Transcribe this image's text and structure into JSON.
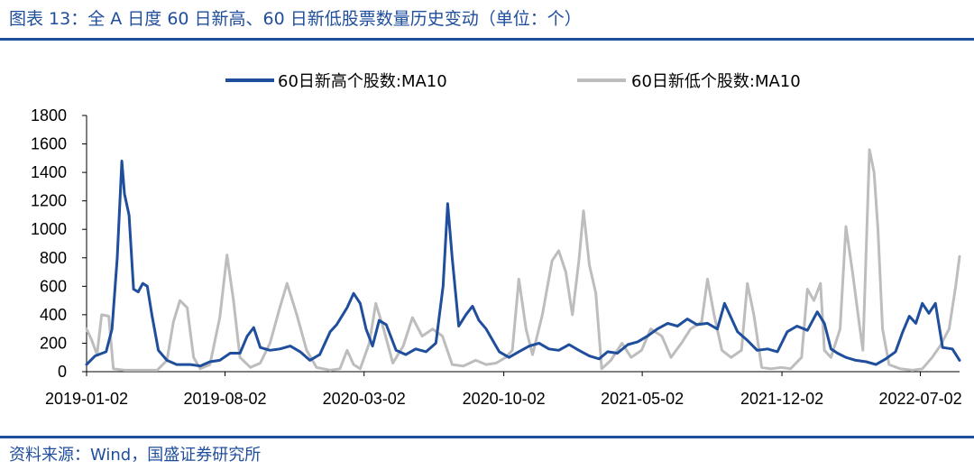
{
  "title": "图表 13：全 A 日度 60 日新高、60 日新低股票数量历史变动（单位：个）",
  "source": "资料来源：Wind，国盛证券研究所",
  "chart_data": {
    "type": "line",
    "y_ticks": [
      "0",
      "200",
      "400",
      "600",
      "800",
      "1000",
      "1200",
      "1400",
      "1600",
      "1800"
    ],
    "ylim": [
      0,
      1800
    ],
    "x_ticks": [
      "2019-01-02",
      "2019-08-02",
      "2020-03-02",
      "2020-10-02",
      "2021-05-02",
      "2021-12-02",
      "2022-07-02"
    ],
    "xlim": [
      "2019-01-02",
      "2022-08-31"
    ],
    "legend_position": "top",
    "series": [
      {
        "name": "60日新高个股数:MA10",
        "color": "#1f4e9c",
        "points": [
          [
            "2019-01-02",
            50
          ],
          [
            "2019-01-15",
            110
          ],
          [
            "2019-02-01",
            140
          ],
          [
            "2019-02-10",
            300
          ],
          [
            "2019-02-18",
            800
          ],
          [
            "2019-02-25",
            1480
          ],
          [
            "2019-03-01",
            1250
          ],
          [
            "2019-03-08",
            1100
          ],
          [
            "2019-03-15",
            580
          ],
          [
            "2019-03-22",
            560
          ],
          [
            "2019-03-29",
            620
          ],
          [
            "2019-04-05",
            600
          ],
          [
            "2019-04-12",
            400
          ],
          [
            "2019-04-22",
            150
          ],
          [
            "2019-05-05",
            80
          ],
          [
            "2019-05-20",
            50
          ],
          [
            "2019-06-10",
            50
          ],
          [
            "2019-06-25",
            40
          ],
          [
            "2019-07-10",
            70
          ],
          [
            "2019-07-25",
            80
          ],
          [
            "2019-08-10",
            130
          ],
          [
            "2019-08-25",
            130
          ],
          [
            "2019-09-05",
            250
          ],
          [
            "2019-09-15",
            310
          ],
          [
            "2019-09-25",
            170
          ],
          [
            "2019-10-10",
            150
          ],
          [
            "2019-10-25",
            160
          ],
          [
            "2019-11-10",
            180
          ],
          [
            "2019-11-25",
            140
          ],
          [
            "2019-12-10",
            80
          ],
          [
            "2019-12-25",
            120
          ],
          [
            "2020-01-10",
            280
          ],
          [
            "2020-01-20",
            330
          ],
          [
            "2020-02-05",
            450
          ],
          [
            "2020-02-15",
            550
          ],
          [
            "2020-02-25",
            480
          ],
          [
            "2020-03-05",
            300
          ],
          [
            "2020-03-15",
            180
          ],
          [
            "2020-03-25",
            360
          ],
          [
            "2020-04-05",
            330
          ],
          [
            "2020-04-20",
            150
          ],
          [
            "2020-05-05",
            120
          ],
          [
            "2020-05-20",
            160
          ],
          [
            "2020-06-05",
            140
          ],
          [
            "2020-06-20",
            200
          ],
          [
            "2020-07-01",
            600
          ],
          [
            "2020-07-08",
            1180
          ],
          [
            "2020-07-15",
            800
          ],
          [
            "2020-07-25",
            320
          ],
          [
            "2020-08-05",
            400
          ],
          [
            "2020-08-15",
            460
          ],
          [
            "2020-08-25",
            360
          ],
          [
            "2020-09-05",
            300
          ],
          [
            "2020-09-15",
            220
          ],
          [
            "2020-09-25",
            140
          ],
          [
            "2020-10-10",
            100
          ],
          [
            "2020-10-25",
            140
          ],
          [
            "2020-11-10",
            180
          ],
          [
            "2020-11-25",
            200
          ],
          [
            "2020-12-10",
            160
          ],
          [
            "2020-12-25",
            150
          ],
          [
            "2021-01-10",
            190
          ],
          [
            "2021-01-25",
            150
          ],
          [
            "2021-02-10",
            110
          ],
          [
            "2021-02-25",
            90
          ],
          [
            "2021-03-10",
            140
          ],
          [
            "2021-03-25",
            130
          ],
          [
            "2021-04-10",
            190
          ],
          [
            "2021-04-25",
            210
          ],
          [
            "2021-05-10",
            250
          ],
          [
            "2021-05-25",
            300
          ],
          [
            "2021-06-10",
            340
          ],
          [
            "2021-06-25",
            320
          ],
          [
            "2021-07-10",
            370
          ],
          [
            "2021-07-25",
            330
          ],
          [
            "2021-08-10",
            340
          ],
          [
            "2021-08-25",
            300
          ],
          [
            "2021-09-05",
            480
          ],
          [
            "2021-09-15",
            380
          ],
          [
            "2021-09-25",
            280
          ],
          [
            "2021-10-10",
            220
          ],
          [
            "2021-10-25",
            150
          ],
          [
            "2021-11-10",
            160
          ],
          [
            "2021-11-25",
            140
          ],
          [
            "2021-12-10",
            280
          ],
          [
            "2021-12-25",
            320
          ],
          [
            "2022-01-10",
            290
          ],
          [
            "2022-01-25",
            420
          ],
          [
            "2022-02-05",
            340
          ],
          [
            "2022-02-15",
            160
          ],
          [
            "2022-02-25",
            130
          ],
          [
            "2022-03-10",
            100
          ],
          [
            "2022-03-25",
            80
          ],
          [
            "2022-04-10",
            70
          ],
          [
            "2022-04-25",
            50
          ],
          [
            "2022-05-10",
            90
          ],
          [
            "2022-05-25",
            140
          ],
          [
            "2022-06-05",
            280
          ],
          [
            "2022-06-15",
            390
          ],
          [
            "2022-06-25",
            340
          ],
          [
            "2022-07-05",
            480
          ],
          [
            "2022-07-15",
            410
          ],
          [
            "2022-07-25",
            480
          ],
          [
            "2022-08-05",
            170
          ],
          [
            "2022-08-20",
            160
          ],
          [
            "2022-08-31",
            80
          ]
        ]
      },
      {
        "name": "60日新低个股数:MA10",
        "color": "#bdbdbd",
        "points": [
          [
            "2019-01-02",
            300
          ],
          [
            "2019-01-10",
            220
          ],
          [
            "2019-01-18",
            120
          ],
          [
            "2019-01-25",
            400
          ],
          [
            "2019-02-05",
            390
          ],
          [
            "2019-02-12",
            20
          ],
          [
            "2019-03-01",
            10
          ],
          [
            "2019-04-01",
            10
          ],
          [
            "2019-04-20",
            10
          ],
          [
            "2019-05-05",
            80
          ],
          [
            "2019-05-15",
            350
          ],
          [
            "2019-05-25",
            500
          ],
          [
            "2019-06-05",
            450
          ],
          [
            "2019-06-15",
            100
          ],
          [
            "2019-06-25",
            20
          ],
          [
            "2019-07-10",
            50
          ],
          [
            "2019-07-25",
            380
          ],
          [
            "2019-08-05",
            820
          ],
          [
            "2019-08-15",
            500
          ],
          [
            "2019-08-25",
            100
          ],
          [
            "2019-09-10",
            30
          ],
          [
            "2019-09-25",
            60
          ],
          [
            "2019-10-10",
            200
          ],
          [
            "2019-10-25",
            450
          ],
          [
            "2019-11-05",
            620
          ],
          [
            "2019-11-20",
            400
          ],
          [
            "2019-12-05",
            150
          ],
          [
            "2019-12-20",
            30
          ],
          [
            "2020-01-10",
            10
          ],
          [
            "2020-01-25",
            20
          ],
          [
            "2020-02-05",
            150
          ],
          [
            "2020-02-15",
            50
          ],
          [
            "2020-02-25",
            20
          ],
          [
            "2020-03-10",
            200
          ],
          [
            "2020-03-20",
            480
          ],
          [
            "2020-04-01",
            300
          ],
          [
            "2020-04-15",
            60
          ],
          [
            "2020-05-01",
            180
          ],
          [
            "2020-05-15",
            380
          ],
          [
            "2020-05-30",
            250
          ],
          [
            "2020-06-15",
            300
          ],
          [
            "2020-06-30",
            250
          ],
          [
            "2020-07-15",
            50
          ],
          [
            "2020-08-01",
            40
          ],
          [
            "2020-08-20",
            80
          ],
          [
            "2020-09-05",
            50
          ],
          [
            "2020-09-20",
            60
          ],
          [
            "2020-10-05",
            100
          ],
          [
            "2020-10-15",
            150
          ],
          [
            "2020-10-25",
            650
          ],
          [
            "2020-11-05",
            300
          ],
          [
            "2020-11-15",
            120
          ],
          [
            "2020-11-30",
            400
          ],
          [
            "2020-12-15",
            780
          ],
          [
            "2020-12-25",
            850
          ],
          [
            "2021-01-05",
            700
          ],
          [
            "2021-01-15",
            400
          ],
          [
            "2021-01-25",
            780
          ],
          [
            "2021-02-01",
            1130
          ],
          [
            "2021-02-10",
            750
          ],
          [
            "2021-02-20",
            550
          ],
          [
            "2021-03-01",
            20
          ],
          [
            "2021-03-15",
            80
          ],
          [
            "2021-04-01",
            200
          ],
          [
            "2021-04-15",
            100
          ],
          [
            "2021-05-01",
            150
          ],
          [
            "2021-05-15",
            300
          ],
          [
            "2021-06-01",
            250
          ],
          [
            "2021-06-15",
            100
          ],
          [
            "2021-07-01",
            200
          ],
          [
            "2021-07-15",
            300
          ],
          [
            "2021-08-01",
            350
          ],
          [
            "2021-08-10",
            650
          ],
          [
            "2021-08-20",
            400
          ],
          [
            "2021-09-01",
            150
          ],
          [
            "2021-09-15",
            100
          ],
          [
            "2021-10-01",
            150
          ],
          [
            "2021-10-10",
            620
          ],
          [
            "2021-10-20",
            400
          ],
          [
            "2021-11-01",
            30
          ],
          [
            "2021-11-15",
            20
          ],
          [
            "2021-12-01",
            30
          ],
          [
            "2021-12-15",
            20
          ],
          [
            "2022-01-01",
            100
          ],
          [
            "2022-01-10",
            580
          ],
          [
            "2022-01-20",
            500
          ],
          [
            "2022-01-30",
            620
          ],
          [
            "2022-02-05",
            150
          ],
          [
            "2022-02-15",
            100
          ],
          [
            "2022-03-01",
            300
          ],
          [
            "2022-03-10",
            1020
          ],
          [
            "2022-03-20",
            700
          ],
          [
            "2022-03-30",
            350
          ],
          [
            "2022-04-05",
            150
          ],
          [
            "2022-04-15",
            1560
          ],
          [
            "2022-04-22",
            1400
          ],
          [
            "2022-04-28",
            1000
          ],
          [
            "2022-05-05",
            300
          ],
          [
            "2022-05-15",
            50
          ],
          [
            "2022-06-01",
            20
          ],
          [
            "2022-06-20",
            10
          ],
          [
            "2022-07-05",
            20
          ],
          [
            "2022-07-20",
            100
          ],
          [
            "2022-08-01",
            180
          ],
          [
            "2022-08-15",
            300
          ],
          [
            "2022-08-25",
            600
          ],
          [
            "2022-08-31",
            810
          ]
        ]
      }
    ]
  }
}
